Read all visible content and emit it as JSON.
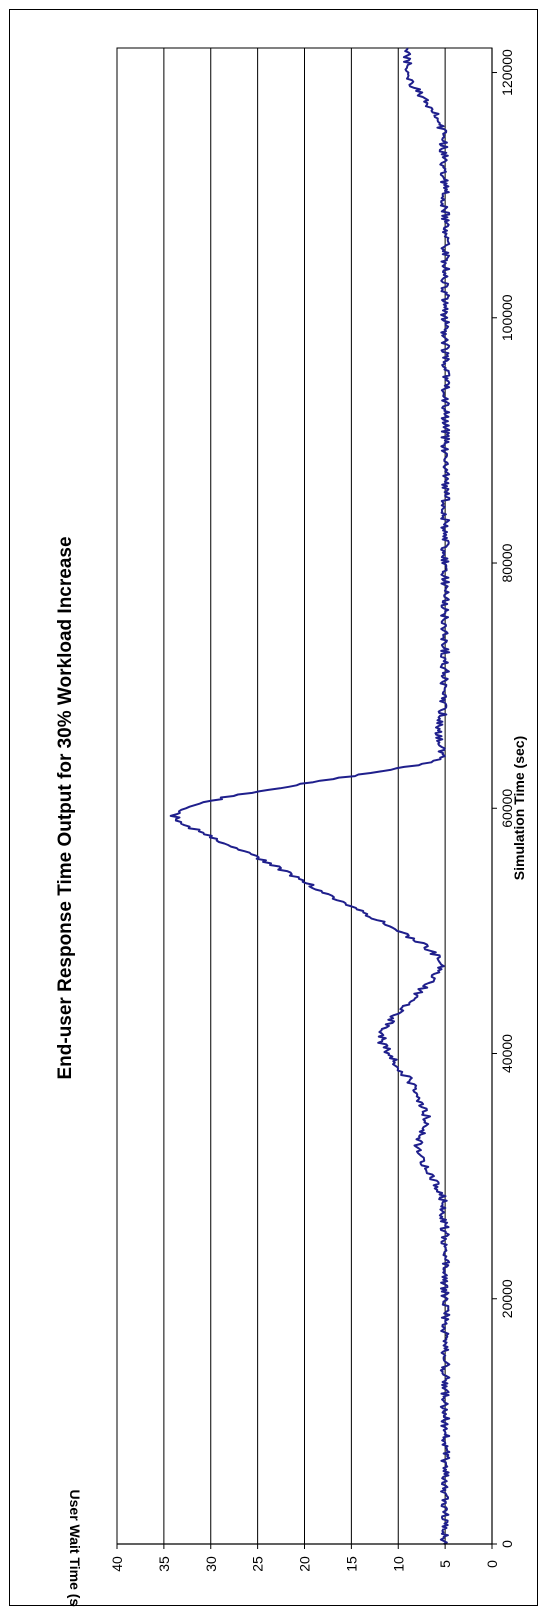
{
  "chart_data": {
    "type": "line",
    "title": "End-user Response Time Output for 30% Workload Increase",
    "xlabel": "Simulation Time (sec)",
    "ylabel": "User Wait Time (sec)",
    "xlim": [
      0,
      122000
    ],
    "ylim": [
      0,
      40
    ],
    "x_ticks": [
      "0",
      "20000",
      "40000",
      "60000",
      "80000",
      "100000",
      "120000"
    ],
    "y_ticks": [
      "0",
      "5",
      "10",
      "15",
      "20",
      "25",
      "30",
      "35",
      "40"
    ],
    "grid": "horizontal",
    "line_color": "#1F1F8C",
    "series": [
      {
        "x": [
          0,
          5000,
          10000,
          15000,
          20000,
          25000,
          28000,
          29000,
          30000,
          31000,
          32000,
          33000,
          34000,
          35000,
          36000,
          37000,
          38000,
          39000,
          40000,
          41000,
          42000,
          43000,
          44000,
          45000,
          46000,
          47000,
          48000,
          49000,
          50000,
          51000,
          52000,
          53000,
          54000,
          55000,
          56000,
          57000,
          58000,
          59000,
          59500,
          60000,
          61000,
          62000,
          63000,
          63500,
          64000,
          65000,
          66000,
          68000,
          72000,
          80000,
          90000,
          100000,
          110000,
          115000,
          116000,
          117000,
          118000,
          119000,
          120000,
          121000,
          122000
        ],
        "y": [
          5,
          5,
          5,
          5,
          5,
          5,
          5.2,
          5.7,
          6.4,
          7.3,
          8.0,
          7.8,
          7.2,
          7.0,
          7.5,
          8.2,
          9.0,
          10.0,
          11.0,
          11.8,
          11.5,
          10.5,
          9.2,
          7.8,
          6.5,
          5.5,
          6.0,
          7.5,
          10.0,
          12.5,
          15.0,
          17.5,
          20.0,
          22.5,
          25.0,
          28.0,
          31.0,
          33.5,
          34.0,
          33.0,
          28.0,
          20.0,
          12.0,
          8.0,
          5.5,
          5.3,
          5.8,
          5.2,
          5,
          5,
          5,
          5,
          5,
          5.2,
          5.6,
          6.4,
          7.5,
          8.5,
          9.0,
          9.0,
          9.0
        ]
      }
    ]
  }
}
